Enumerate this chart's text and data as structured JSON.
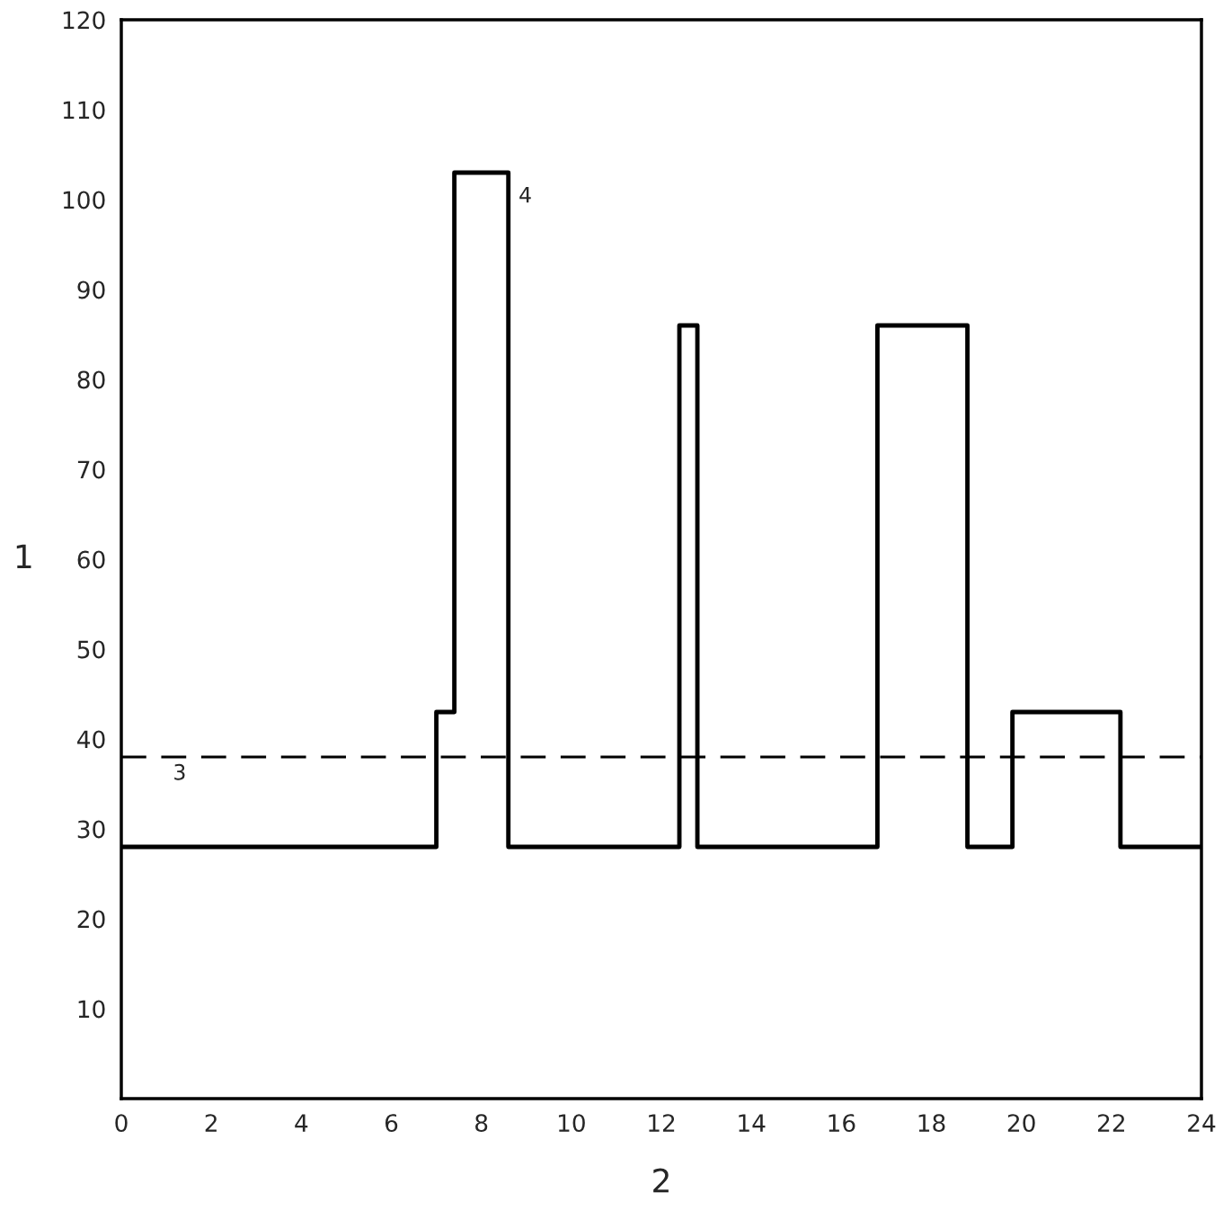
{
  "chart_data": {
    "type": "step",
    "xlabel": "2",
    "ylabel": "1",
    "x": [
      0,
      7,
      7.4,
      8.6,
      12.4,
      12.8,
      16.8,
      18.8,
      19.8,
      22.2,
      24
    ],
    "series": [
      {
        "color": "#000000",
        "values": [
          28,
          43,
          103,
          28,
          86,
          28,
          86,
          28,
          43,
          28,
          28
        ]
      }
    ],
    "xlim": [
      0,
      24
    ],
    "ylim": [
      0,
      120
    ],
    "xticks": [
      0,
      2,
      4,
      6,
      8,
      10,
      12,
      14,
      16,
      18,
      20,
      22,
      24
    ],
    "yticks": [
      10,
      20,
      30,
      40,
      50,
      60,
      70,
      80,
      90,
      100,
      110,
      120
    ],
    "ref_lines": [
      {
        "axis": "y",
        "value": 38,
        "color": "#000000",
        "line_style": "dashed"
      }
    ],
    "annotations": [
      "3",
      "4"
    ],
    "grid": false,
    "legend": false
  }
}
